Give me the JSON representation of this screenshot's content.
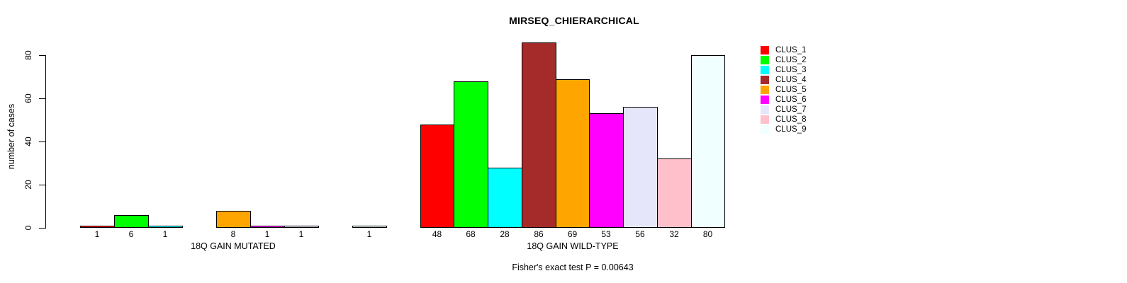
{
  "title": "MIRSEQ_CHIERARCHICAL",
  "y_axis": {
    "label": "number of cases",
    "ticks": [
      "0",
      "20",
      "40",
      "60",
      "80"
    ]
  },
  "legend": {
    "position": "right",
    "entries": [
      {
        "label": "CLUS_1",
        "color": "#FF0000"
      },
      {
        "label": "CLUS_2",
        "color": "#00FF00"
      },
      {
        "label": "CLUS_3",
        "color": "#00FFFF"
      },
      {
        "label": "CLUS_4",
        "color": "#A52A2A"
      },
      {
        "label": "CLUS_5",
        "color": "#FFA500"
      },
      {
        "label": "CLUS_6",
        "color": "#FF00FF"
      },
      {
        "label": "CLUS_7",
        "color": "#E6E6FA"
      },
      {
        "label": "CLUS_8",
        "color": "#FFC0CB"
      },
      {
        "label": "CLUS_9",
        "color": "#F0FFFF"
      }
    ]
  },
  "annotation": {
    "text": "Fisher's exact test P = 0.00643"
  },
  "chart_data": [
    {
      "type": "bar",
      "panel": "mutated",
      "title": "MIRSEQ_CHIERARCHICAL",
      "xlabel": "18Q GAIN MUTATED",
      "ylabel": "number of cases",
      "ylim": [
        0,
        80
      ],
      "yticks": [
        0,
        20,
        40,
        60,
        80
      ],
      "grid": false,
      "bar_gap": 0,
      "categories": [
        "CLUS_1",
        "CLUS_2",
        "CLUS_3",
        "CLUS_4",
        "CLUS_5",
        "CLUS_6",
        "CLUS_7",
        "CLUS_8",
        "CLUS_9"
      ],
      "values": [
        1,
        6,
        1,
        0,
        8,
        1,
        1,
        0,
        1
      ],
      "bar_labels": [
        "1",
        "6",
        "1",
        "",
        "8",
        "1",
        "1",
        "",
        "1"
      ],
      "colors": [
        "#FF0000",
        "#00FF00",
        "#00FFFF",
        "#A52A2A",
        "#FFA500",
        "#FF00FF",
        "#E6E6FA",
        "#FFC0CB",
        "#F0FFFF"
      ]
    },
    {
      "type": "bar",
      "panel": "wild-type",
      "title": "MIRSEQ_CHIERARCHICAL",
      "xlabel": "18Q GAIN WILD-TYPE",
      "ylabel": "number of cases",
      "ylim": [
        0,
        80
      ],
      "yticks": [
        0,
        20,
        40,
        60,
        80
      ],
      "grid": false,
      "bar_gap": 0,
      "categories": [
        "CLUS_1",
        "CLUS_2",
        "CLUS_3",
        "CLUS_4",
        "CLUS_5",
        "CLUS_6",
        "CLUS_7",
        "CLUS_8",
        "CLUS_9"
      ],
      "values": [
        48,
        68,
        28,
        86,
        69,
        53,
        56,
        32,
        80
      ],
      "bar_labels": [
        "48",
        "68",
        "28",
        "86",
        "69",
        "53",
        "56",
        "32",
        "80"
      ],
      "colors": [
        "#FF0000",
        "#00FF00",
        "#00FFFF",
        "#A52A2A",
        "#FFA500",
        "#FF00FF",
        "#E6E6FA",
        "#FFC0CB",
        "#F0FFFF"
      ]
    }
  ]
}
